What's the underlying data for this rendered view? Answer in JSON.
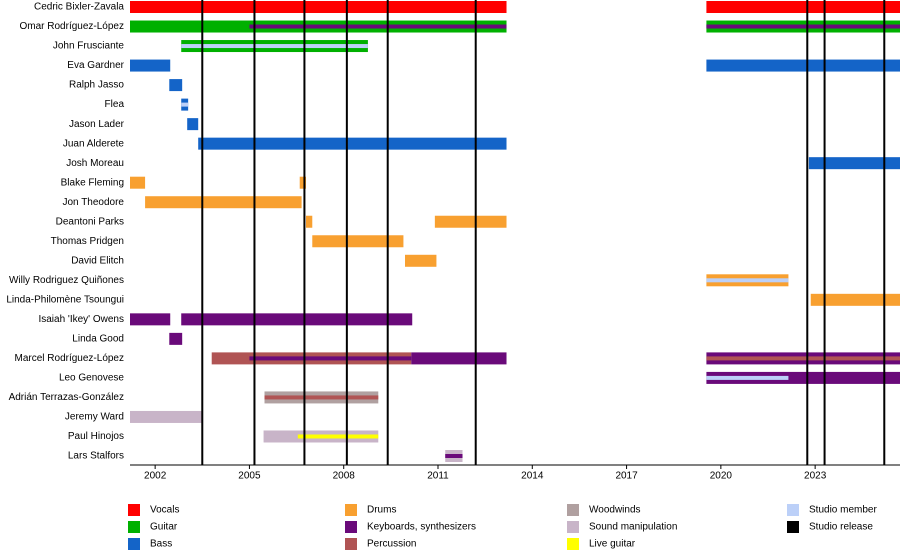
{
  "chart_data": {
    "type": "timeline",
    "xlim": [
      2001.2,
      2025.7
    ],
    "xticks": [
      2002,
      2005,
      2008,
      2011,
      2014,
      2017,
      2020,
      2023
    ],
    "legend": [
      {
        "name": "Vocals",
        "color": "#ff0000"
      },
      {
        "name": "Guitar",
        "color": "#00b000"
      },
      {
        "name": "Bass",
        "color": "#1464c8"
      },
      {
        "name": "Drums",
        "color": "#f8a030"
      },
      {
        "name": "Keyboards, synthesizers",
        "color": "#6a0a7a"
      },
      {
        "name": "Percussion",
        "color": "#b05454"
      },
      {
        "name": "Woodwinds",
        "color": "#b0a0a0"
      },
      {
        "name": "Sound manipulation",
        "color": "#c8b4c8"
      },
      {
        "name": "Live guitar",
        "color": "#ffff00"
      },
      {
        "name": "Studio member",
        "color": "#bcd0f8"
      },
      {
        "name": "Studio release",
        "color": "#000000"
      }
    ],
    "releases": [
      2003.5,
      2005.16,
      2006.75,
      2008.1,
      2009.4,
      2012.2,
      2022.75,
      2023.3,
      2025.2
    ],
    "members": [
      {
        "name": "Cedric Bixler-Zavala",
        "bars": [
          {
            "role": "Vocals",
            "start": 2001.2,
            "end": 2013.18
          },
          {
            "role": "Vocals",
            "start": 2019.54,
            "end": 2025.7
          }
        ]
      },
      {
        "name": "Omar Rodríguez-López",
        "bars": [
          {
            "role": "Guitar",
            "start": 2001.2,
            "end": 2013.18
          },
          {
            "role": "Keyboards, synthesizers",
            "start": 2005.0,
            "end": 2013.18,
            "stripe": true
          },
          {
            "role": "Guitar",
            "start": 2019.54,
            "end": 2025.7
          },
          {
            "role": "Keyboards, synthesizers",
            "start": 2019.54,
            "end": 2025.7,
            "stripe": true
          }
        ]
      },
      {
        "name": "John Frusciante",
        "bars": [
          {
            "role": "Guitar",
            "start": 2002.83,
            "end": 2008.77
          },
          {
            "role": "Studio member",
            "start": 2002.83,
            "end": 2008.77,
            "stripe": true
          }
        ]
      },
      {
        "name": "Eva Gardner",
        "bars": [
          {
            "role": "Bass",
            "start": 2001.2,
            "end": 2002.48
          },
          {
            "role": "Bass",
            "start": 2019.54,
            "end": 2025.7
          }
        ]
      },
      {
        "name": "Ralph Jasso",
        "bars": [
          {
            "role": "Bass",
            "start": 2002.45,
            "end": 2002.86
          }
        ]
      },
      {
        "name": "Flea",
        "bars": [
          {
            "role": "Bass",
            "start": 2002.83,
            "end": 2003.05
          },
          {
            "role": "Studio member",
            "start": 2002.83,
            "end": 2003.05,
            "stripe": true
          }
        ]
      },
      {
        "name": "Jason Lader",
        "bars": [
          {
            "role": "Bass",
            "start": 2003.02,
            "end": 2003.37
          }
        ]
      },
      {
        "name": "Juan Alderete",
        "bars": [
          {
            "role": "Bass",
            "start": 2003.37,
            "end": 2013.18
          }
        ]
      },
      {
        "name": "Josh Moreau",
        "bars": [
          {
            "role": "Bass",
            "start": 2022.8,
            "end": 2025.7
          }
        ]
      },
      {
        "name": "Blake Fleming",
        "bars": [
          {
            "role": "Drums",
            "start": 2001.2,
            "end": 2001.68
          },
          {
            "role": "Drums",
            "start": 2006.6,
            "end": 2006.8
          }
        ]
      },
      {
        "name": "Jon Theodore",
        "bars": [
          {
            "role": "Drums",
            "start": 2001.68,
            "end": 2006.66
          }
        ]
      },
      {
        "name": "Deantoni Parks",
        "bars": [
          {
            "role": "Drums",
            "start": 2006.8,
            "end": 2007.0
          },
          {
            "role": "Drums",
            "start": 2010.9,
            "end": 2013.18
          }
        ]
      },
      {
        "name": "Thomas Pridgen",
        "bars": [
          {
            "role": "Drums",
            "start": 2007.0,
            "end": 2009.9
          }
        ]
      },
      {
        "name": "David Elitch",
        "bars": [
          {
            "role": "Drums",
            "start": 2009.95,
            "end": 2010.95
          }
        ]
      },
      {
        "name": "Willy Rodriguez Quiñones",
        "bars": [
          {
            "role": "Drums",
            "start": 2019.54,
            "end": 2022.15
          },
          {
            "role": "Studio member",
            "start": 2019.54,
            "end": 2022.15,
            "stripe": true
          }
        ]
      },
      {
        "name": "Linda-Philomène Tsoungui",
        "bars": [
          {
            "role": "Drums",
            "start": 2022.86,
            "end": 2025.7
          }
        ]
      },
      {
        "name": "Isaiah 'Ikey' Owens",
        "bars": [
          {
            "role": "Keyboards, synthesizers",
            "start": 2001.2,
            "end": 2002.48
          },
          {
            "role": "Keyboards, synthesizers",
            "start": 2002.83,
            "end": 2010.18
          }
        ]
      },
      {
        "name": "Linda Good",
        "bars": [
          {
            "role": "Keyboards, synthesizers",
            "start": 2002.45,
            "end": 2002.86
          }
        ]
      },
      {
        "name": "Marcel Rodríguez-López",
        "bars": [
          {
            "role": "Percussion",
            "start": 2003.8,
            "end": 2010.15
          },
          {
            "role": "Keyboards, synthesizers",
            "start": 2005.0,
            "end": 2010.15,
            "stripe": true
          },
          {
            "role": "Keyboards, synthesizers",
            "start": 2010.15,
            "end": 2013.18
          },
          {
            "role": "Keyboards, synthesizers",
            "start": 2019.54,
            "end": 2025.7
          },
          {
            "role": "Percussion",
            "start": 2019.54,
            "end": 2025.7,
            "stripe": true
          }
        ]
      },
      {
        "name": "Leo Genovese",
        "bars": [
          {
            "role": "Keyboards, synthesizers",
            "start": 2019.54,
            "end": 2025.7
          },
          {
            "role": "Studio member",
            "start": 2019.54,
            "end": 2022.15,
            "stripe": true
          }
        ]
      },
      {
        "name": "Adrián Terrazas-González",
        "bars": [
          {
            "role": "Woodwinds",
            "start": 2005.48,
            "end": 2009.1
          },
          {
            "role": "Percussion",
            "start": 2005.48,
            "end": 2009.1,
            "stripe": true
          }
        ]
      },
      {
        "name": "Jeremy Ward",
        "bars": [
          {
            "role": "Sound manipulation",
            "start": 2001.2,
            "end": 2003.5
          }
        ]
      },
      {
        "name": "Paul Hinojos",
        "bars": [
          {
            "role": "Sound manipulation",
            "start": 2005.45,
            "end": 2009.1
          },
          {
            "role": "Live guitar",
            "start": 2006.54,
            "end": 2009.1,
            "stripe": true
          }
        ]
      },
      {
        "name": "Lars Stalfors",
        "bars": [
          {
            "role": "Sound manipulation",
            "start": 2011.23,
            "end": 2011.78
          },
          {
            "role": "Keyboards, synthesizers",
            "start": 2011.23,
            "end": 2011.78,
            "stripe": true
          }
        ]
      }
    ]
  }
}
